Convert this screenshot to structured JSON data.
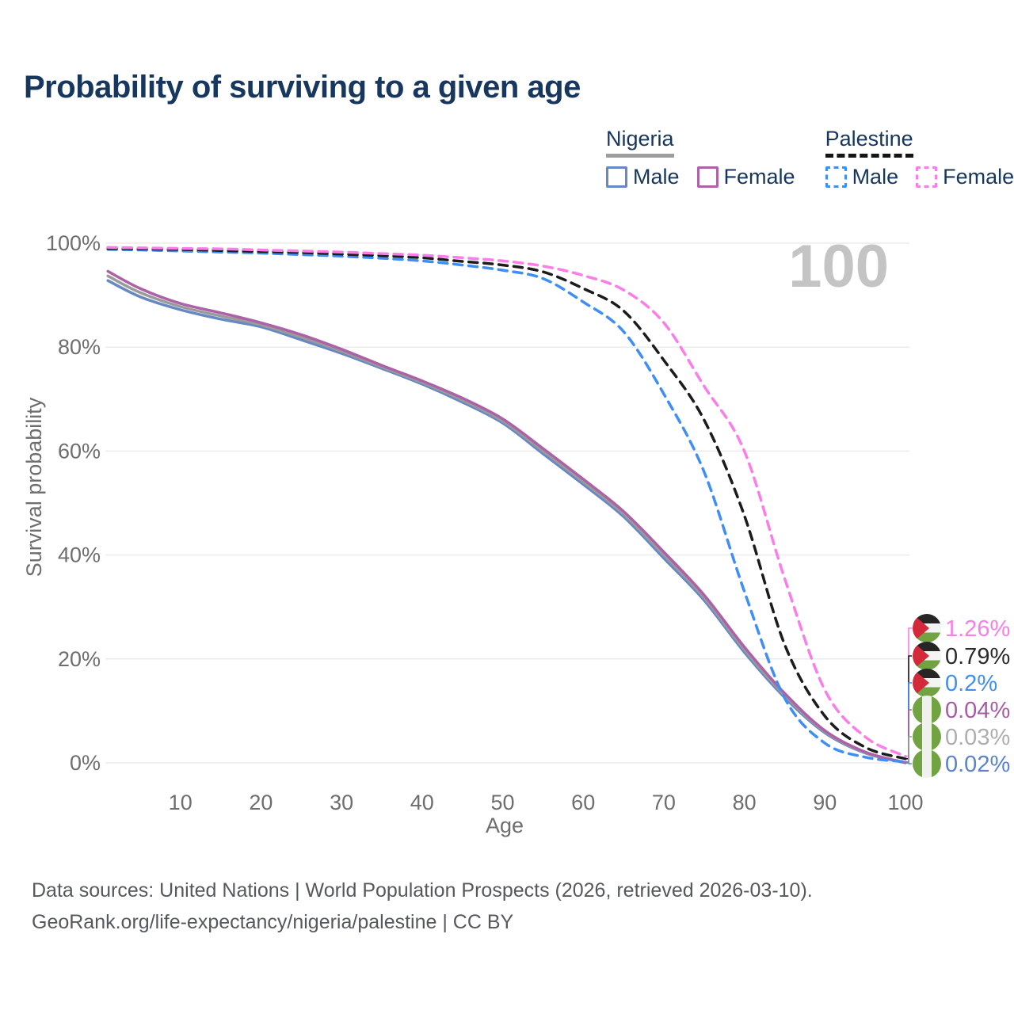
{
  "title": "Probability of surviving to a given age",
  "watermark": "100",
  "legend": {
    "groups": [
      {
        "name": "Nigeria",
        "line_style": "solid",
        "line_color": "#9e9e9e",
        "items": [
          {
            "label": "Male",
            "color": "#6688c3"
          },
          {
            "label": "Female",
            "color": "#ad62a7"
          }
        ]
      },
      {
        "name": "Palestine",
        "line_style": "dashed",
        "line_color": "#151515",
        "items": [
          {
            "label": "Male",
            "color": "#3f8ef6"
          },
          {
            "label": "Female",
            "color": "#fb7de8"
          }
        ]
      }
    ]
  },
  "chart_data": {
    "type": "line",
    "title": "Probability of surviving to a given age",
    "xlabel": "Age",
    "ylabel": "Survival probability",
    "xlim": [
      0,
      100
    ],
    "ylim": [
      0,
      100
    ],
    "grid": "horizontal",
    "legend_position": "top-right",
    "x_ticks": [
      10,
      20,
      30,
      40,
      50,
      60,
      70,
      80,
      90,
      100
    ],
    "y_ticks": {
      "values": [
        0,
        20,
        40,
        60,
        80,
        100
      ],
      "labels": [
        "0%",
        "20%",
        "40%",
        "60%",
        "80%",
        "100%"
      ]
    },
    "x": [
      1,
      5,
      10,
      15,
      20,
      25,
      30,
      35,
      40,
      45,
      50,
      55,
      60,
      65,
      70,
      75,
      80,
      85,
      90,
      95,
      100
    ],
    "series": [
      {
        "name": "Nigeria Male",
        "country": "Nigeria",
        "sex": "Male",
        "color": "#6688c3",
        "line": "solid",
        "flag": "nigeria",
        "end_label": "0.02%",
        "label_color": "#5b82cc",
        "values": [
          92.8,
          89.7,
          87.2,
          85.4,
          83.9,
          81.4,
          78.8,
          75.9,
          72.9,
          69.4,
          65.4,
          59.5,
          53.6,
          47.4,
          39.4,
          31.3,
          21.3,
          12.6,
          5.8,
          1.9,
          0.02
        ]
      },
      {
        "name": "Nigeria",
        "country": "Nigeria",
        "sex": "Both",
        "color": "#9b9b9b",
        "line": "solid",
        "flag": "nigeria",
        "end_label": "0.03%",
        "label_color": "#aeaeae",
        "values": [
          93.7,
          90.5,
          87.8,
          86.0,
          84.3,
          81.9,
          79.2,
          76.2,
          73.2,
          69.8,
          65.8,
          60.0,
          54.1,
          47.9,
          40.0,
          31.8,
          21.8,
          13.0,
          6.0,
          2.0,
          0.03
        ]
      },
      {
        "name": "Nigeria Female",
        "country": "Nigeria",
        "sex": "Female",
        "color": "#ad62a7",
        "line": "solid",
        "flag": "nigeria",
        "end_label": "0.04%",
        "label_color": "#a85ba6",
        "values": [
          94.6,
          91.3,
          88.4,
          86.6,
          84.7,
          82.4,
          79.6,
          76.5,
          73.5,
          70.2,
          66.2,
          60.5,
          54.6,
          48.4,
          40.6,
          32.3,
          22.3,
          13.4,
          6.2,
          2.1,
          0.04
        ]
      },
      {
        "name": "Palestine Male",
        "country": "Palestine",
        "sex": "Male",
        "color": "#3f8ef6",
        "line": "dashed",
        "flag": "palestine",
        "end_label": "0.2%",
        "label_color": "#3f8ef6",
        "values": [
          98.8,
          98.7,
          98.5,
          98.3,
          98.1,
          97.8,
          97.5,
          97.1,
          96.6,
          95.8,
          94.8,
          93.2,
          88.7,
          83.0,
          71.0,
          56.0,
          33.0,
          12.5,
          3.8,
          1.1,
          0.2
        ]
      },
      {
        "name": "Palestine",
        "country": "Palestine",
        "sex": "Both",
        "color": "#1c1c1c",
        "line": "dashed",
        "flag": "palestine",
        "end_label": "0.79%",
        "label_color": "#2b2b2b",
        "values": [
          99.0,
          98.9,
          98.8,
          98.6,
          98.4,
          98.2,
          97.9,
          97.6,
          97.2,
          96.5,
          95.8,
          94.5,
          91.3,
          87.0,
          77.5,
          66.0,
          47.6,
          22.8,
          9.0,
          3.0,
          0.79
        ]
      },
      {
        "name": "Palestine Female",
        "country": "Palestine",
        "sex": "Female",
        "color": "#fb7de8",
        "line": "dashed",
        "flag": "palestine",
        "end_label": "1.26%",
        "label_color": "#fb7de8",
        "values": [
          99.2,
          99.1,
          99.0,
          98.9,
          98.7,
          98.5,
          98.3,
          98.0,
          97.7,
          97.2,
          96.6,
          95.6,
          93.8,
          91.0,
          84.7,
          72.5,
          60.0,
          35.5,
          14.0,
          5.0,
          1.26
        ]
      }
    ]
  },
  "footer": {
    "line1": "Data sources: United Nations | World Population Prospects (2026, retrieved 2026-03-10).",
    "line2": "GeoRank.org/life-expectancy/nigeria/palestine | CC BY"
  }
}
